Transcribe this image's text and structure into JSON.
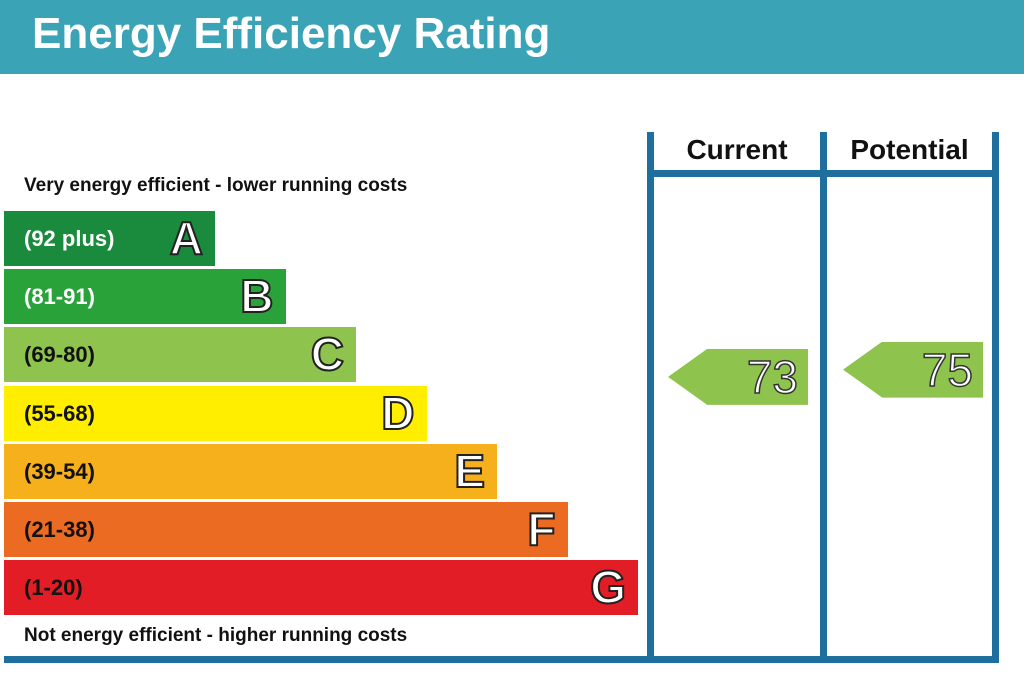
{
  "title": "Energy Efficiency Rating",
  "top_caption": "Very energy efficient - lower running costs",
  "bottom_caption": "Not energy efficient - higher running costs",
  "columns": {
    "current": "Current",
    "potential": "Potential"
  },
  "chart_data": {
    "type": "bar",
    "title": "Energy Efficiency Rating",
    "categories": [
      "A",
      "B",
      "C",
      "D",
      "E",
      "F",
      "G"
    ],
    "bands": [
      {
        "letter": "A",
        "range": "(92 plus)",
        "color": "#1a8a3c",
        "range_color": "#ffffff"
      },
      {
        "letter": "B",
        "range": "(81-91)",
        "color": "#2aa23a",
        "range_color": "#ffffff"
      },
      {
        "letter": "C",
        "range": "(69-80)",
        "color": "#8ec44e",
        "range_color": "#111111"
      },
      {
        "letter": "D",
        "range": "(55-68)",
        "color": "#ffee00",
        "range_color": "#111111"
      },
      {
        "letter": "E",
        "range": "(39-54)",
        "color": "#f5b01c",
        "range_color": "#111111"
      },
      {
        "letter": "F",
        "range": "(21-38)",
        "color": "#ec6b23",
        "range_color": "#111111"
      },
      {
        "letter": "G",
        "range": "(1-20)",
        "color": "#e21d25",
        "range_color": "#111111"
      }
    ],
    "current": {
      "value": 73,
      "band": "C",
      "color": "#8ec44e"
    },
    "potential": {
      "value": 75,
      "band": "C",
      "color": "#8ec44e"
    }
  }
}
